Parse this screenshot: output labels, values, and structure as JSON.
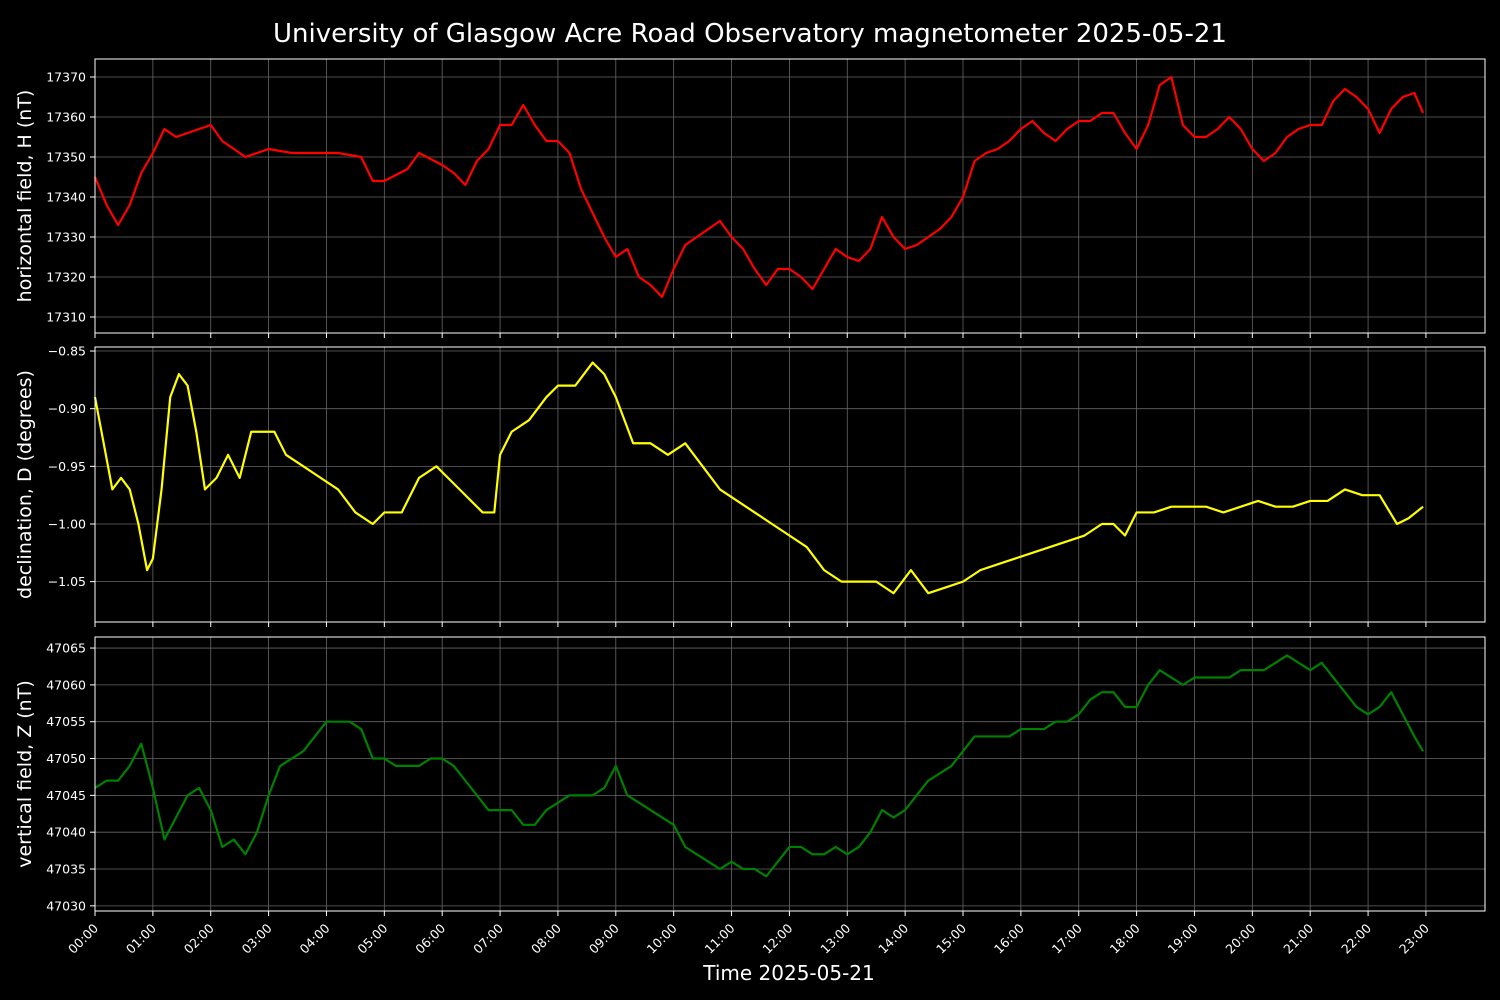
{
  "chart_data": {
    "type": "line",
    "title": "University of Glasgow Acre Road Observatory magnetometer 2025-05-21",
    "xlabel": "Time 2025-05-21",
    "x_ticks": [
      "00:00",
      "01:00",
      "02:00",
      "03:00",
      "04:00",
      "05:00",
      "06:00",
      "07:00",
      "08:00",
      "09:00",
      "10:00",
      "11:00",
      "12:00",
      "13:00",
      "14:00",
      "15:00",
      "16:00",
      "17:00",
      "18:00",
      "19:00",
      "20:00",
      "21:00",
      "22:00",
      "23:00"
    ],
    "xlim": [
      0,
      24
    ],
    "grid": true,
    "panels": [
      {
        "ylabel": "horizontal field, H (nT)",
        "color": "#ff0000",
        "ylim": [
          17306.0,
          17374.5
        ],
        "ytick_values": [
          17310,
          17320,
          17330,
          17340,
          17350,
          17360,
          17370
        ],
        "ytick_labels": [
          "17310",
          "17320",
          "17330",
          "17340",
          "17350",
          "17360",
          "17370"
        ],
        "x": [
          0,
          0.2,
          0.4,
          0.6,
          0.8,
          1.0,
          1.2,
          1.4,
          1.6,
          1.8,
          2.0,
          2.2,
          2.4,
          2.6,
          3.0,
          3.4,
          3.8,
          4.2,
          4.6,
          4.8,
          5.0,
          5.4,
          5.6,
          6.0,
          6.2,
          6.4,
          6.6,
          6.8,
          7.0,
          7.2,
          7.4,
          7.6,
          7.8,
          8.0,
          8.2,
          8.4,
          8.6,
          8.8,
          9.0,
          9.2,
          9.4,
          9.6,
          9.8,
          10.0,
          10.2,
          10.4,
          10.6,
          10.8,
          11.0,
          11.2,
          11.4,
          11.6,
          11.8,
          12.0,
          12.2,
          12.4,
          12.6,
          12.8,
          13.0,
          13.2,
          13.4,
          13.6,
          13.8,
          14.0,
          14.2,
          14.4,
          14.6,
          14.8,
          15.0,
          15.2,
          15.4,
          15.6,
          15.8,
          16.0,
          16.2,
          16.4,
          16.6,
          16.8,
          17.0,
          17.2,
          17.4,
          17.6,
          17.8,
          18.0,
          18.2,
          18.4,
          18.6,
          18.8,
          19.0,
          19.2,
          19.4,
          19.6,
          19.8,
          20.0,
          20.2,
          20.4,
          20.6,
          20.8,
          21.0,
          21.2,
          21.4,
          21.6,
          21.8,
          22.0,
          22.2,
          22.4,
          22.6,
          22.8,
          22.95
        ],
        "values": [
          17345,
          17338,
          17333,
          17338,
          17346,
          17351,
          17357,
          17355,
          17356,
          17357,
          17358,
          17354,
          17352,
          17350,
          17352,
          17351,
          17351,
          17351,
          17350,
          17344,
          17344,
          17347,
          17351,
          17348,
          17346,
          17343,
          17349,
          17352,
          17358,
          17358,
          17363,
          17358,
          17354,
          17354,
          17351,
          17342,
          17336,
          17330,
          17325,
          17327,
          17320,
          17318,
          17315,
          17322,
          17328,
          17330,
          17332,
          17334,
          17330,
          17327,
          17322,
          17318,
          17322,
          17322,
          17320,
          17317,
          17322,
          17327,
          17325,
          17324,
          17327,
          17335,
          17330,
          17327,
          17328,
          17330,
          17332,
          17335,
          17340,
          17349,
          17351,
          17352,
          17354,
          17357,
          17359,
          17356,
          17354,
          17357,
          17359,
          17359,
          17361,
          17361,
          17356,
          17352,
          17358,
          17368,
          17370,
          17358,
          17355,
          17355,
          17357,
          17360,
          17357,
          17352,
          17349,
          17351,
          17355,
          17357,
          17358,
          17358,
          17364,
          17367,
          17365,
          17362,
          17356,
          17362,
          17365,
          17366,
          17361
        ]
      },
      {
        "ylabel": "declination, D (degrees)",
        "color": "#ffff00",
        "ylim": [
          -1.085,
          -0.8465
        ],
        "ytick_values": [
          -1.05,
          -1.0,
          -0.95,
          -0.9,
          -0.85
        ],
        "ytick_labels": [
          "−1.05",
          "−1.00",
          "−0.95",
          "−0.90",
          "−0.85"
        ],
        "x": [
          0,
          0.15,
          0.3,
          0.45,
          0.6,
          0.75,
          0.9,
          1.0,
          1.15,
          1.3,
          1.45,
          1.6,
          1.75,
          1.9,
          2.1,
          2.3,
          2.5,
          2.7,
          2.9,
          3.1,
          3.3,
          3.6,
          3.9,
          4.2,
          4.5,
          4.8,
          5.0,
          5.3,
          5.6,
          5.9,
          6.1,
          6.3,
          6.5,
          6.7,
          6.9,
          7.0,
          7.2,
          7.5,
          7.8,
          8.0,
          8.3,
          8.6,
          8.8,
          9.0,
          9.3,
          9.6,
          9.9,
          10.2,
          10.5,
          10.8,
          11.1,
          11.4,
          11.7,
          12.0,
          12.3,
          12.6,
          12.9,
          13.2,
          13.5,
          13.8,
          14.1,
          14.4,
          14.7,
          15.0,
          15.3,
          15.6,
          15.9,
          16.2,
          16.5,
          16.8,
          17.1,
          17.4,
          17.6,
          17.8,
          18.0,
          18.3,
          18.6,
          18.9,
          19.2,
          19.5,
          19.8,
          20.1,
          20.4,
          20.7,
          21.0,
          21.3,
          21.6,
          21.9,
          22.2,
          22.5,
          22.7,
          22.95
        ],
        "values": [
          -0.89,
          -0.93,
          -0.97,
          -0.96,
          -0.97,
          -1.0,
          -1.04,
          -1.03,
          -0.97,
          -0.89,
          -0.87,
          -0.88,
          -0.92,
          -0.97,
          -0.96,
          -0.94,
          -0.96,
          -0.92,
          -0.92,
          -0.92,
          -0.94,
          -0.95,
          -0.96,
          -0.97,
          -0.99,
          -1.0,
          -0.99,
          -0.99,
          -0.96,
          -0.95,
          -0.96,
          -0.97,
          -0.98,
          -0.99,
          -0.99,
          -0.94,
          -0.92,
          -0.91,
          -0.89,
          -0.88,
          -0.88,
          -0.86,
          -0.87,
          -0.89,
          -0.93,
          -0.93,
          -0.94,
          -0.93,
          -0.95,
          -0.97,
          -0.98,
          -0.99,
          -1.0,
          -1.01,
          -1.02,
          -1.04,
          -1.05,
          -1.05,
          -1.05,
          -1.06,
          -1.04,
          -1.06,
          -1.055,
          -1.05,
          -1.04,
          -1.035,
          -1.03,
          -1.025,
          -1.02,
          -1.015,
          -1.01,
          -1.0,
          -1.0,
          -1.01,
          -0.99,
          -0.99,
          -0.985,
          -0.985,
          -0.985,
          -0.99,
          -0.985,
          -0.98,
          -0.985,
          -0.985,
          -0.98,
          -0.98,
          -0.97,
          -0.975,
          -0.975,
          -1.0,
          -0.995,
          -0.985
        ]
      },
      {
        "ylabel": "vertical field, Z (nT)",
        "color": "#008000",
        "ylim": [
          47029.3,
          47066.5
        ],
        "ytick_values": [
          47030,
          47035,
          47040,
          47045,
          47050,
          47055,
          47060,
          47065
        ],
        "ytick_labels": [
          "47030",
          "47035",
          "47040",
          "47045",
          "47050",
          "47055",
          "47060",
          "47065"
        ],
        "x": [
          0,
          0.2,
          0.4,
          0.6,
          0.8,
          1.0,
          1.2,
          1.4,
          1.6,
          1.8,
          2.0,
          2.2,
          2.4,
          2.6,
          2.8,
          3.0,
          3.2,
          3.4,
          3.6,
          3.8,
          4.0,
          4.2,
          4.4,
          4.6,
          4.8,
          5.0,
          5.2,
          5.4,
          5.6,
          5.8,
          6.0,
          6.2,
          6.4,
          6.6,
          6.8,
          7.0,
          7.2,
          7.4,
          7.6,
          7.8,
          8.0,
          8.2,
          8.4,
          8.6,
          8.8,
          9.0,
          9.2,
          9.4,
          9.6,
          9.8,
          10.0,
          10.2,
          10.4,
          10.6,
          10.8,
          11.0,
          11.2,
          11.4,
          11.6,
          11.8,
          12.0,
          12.2,
          12.4,
          12.6,
          12.8,
          13.0,
          13.2,
          13.4,
          13.6,
          13.8,
          14.0,
          14.2,
          14.4,
          14.6,
          14.8,
          15.0,
          15.2,
          15.4,
          15.6,
          15.8,
          16.0,
          16.2,
          16.4,
          16.6,
          16.8,
          17.0,
          17.2,
          17.4,
          17.6,
          17.8,
          18.0,
          18.2,
          18.4,
          18.6,
          18.8,
          19.0,
          19.2,
          19.4,
          19.6,
          19.8,
          20.0,
          20.2,
          20.4,
          20.6,
          20.8,
          21.0,
          21.2,
          21.4,
          21.6,
          21.8,
          22.0,
          22.2,
          22.4,
          22.6,
          22.8,
          22.95
        ],
        "values": [
          47046,
          47047,
          47047,
          47049,
          47052,
          47046,
          47039,
          47042,
          47045,
          47046,
          47043,
          47038,
          47039,
          47037,
          47040,
          47045,
          47049,
          47050,
          47051,
          47053,
          47055,
          47055,
          47055,
          47054,
          47050,
          47050,
          47049,
          47049,
          47049,
          47050,
          47050,
          47049,
          47047,
          47045,
          47043,
          47043,
          47043,
          47041,
          47041,
          47043,
          47044,
          47045,
          47045,
          47045,
          47046,
          47049,
          47045,
          47044,
          47043,
          47042,
          47041,
          47038,
          47037,
          47036,
          47035,
          47036,
          47035,
          47035,
          47034,
          47036,
          47038,
          47038,
          47037,
          47037,
          47038,
          47037,
          47038,
          47040,
          47043,
          47042,
          47043,
          47045,
          47047,
          47048,
          47049,
          47051,
          47053,
          47053,
          47053,
          47053,
          47054,
          47054,
          47054,
          47055,
          47055,
          47056,
          47058,
          47059,
          47059,
          47057,
          47057,
          47060,
          47062,
          47061,
          47060,
          47061,
          47061,
          47061,
          47061,
          47062,
          47062,
          47062,
          47063,
          47064,
          47063,
          47062,
          47063,
          47061,
          47059,
          47057,
          47056,
          47057,
          47059,
          47056,
          47053,
          47051
        ]
      }
    ]
  }
}
